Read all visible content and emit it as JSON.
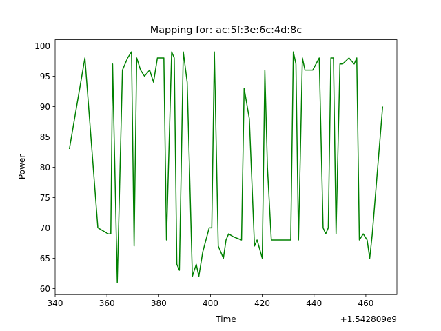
{
  "chart_data": {
    "type": "line",
    "title": "Mapping for: ac:5f:3e:6c:4d:8c",
    "xlabel": "Time",
    "ylabel": "Power",
    "x_offset_label": "+1.542809e9",
    "xlim": [
      340,
      472
    ],
    "ylim": [
      59,
      101
    ],
    "xticks": [
      340,
      360,
      380,
      400,
      420,
      440,
      460
    ],
    "yticks": [
      60,
      65,
      70,
      75,
      80,
      85,
      90,
      95,
      100
    ],
    "grid": false,
    "series": [
      {
        "color": "#008000",
        "x": [
          345.5,
          351.5,
          356.5,
          360.5,
          361.5,
          362.2,
          364.0,
          366.0,
          368.0,
          369.5,
          370.5,
          371.5,
          373.0,
          374.5,
          376.5,
          378.0,
          379.5,
          381.0,
          382.0,
          383.0,
          385.0,
          386.0,
          387.0,
          388.0,
          389.5,
          391.0,
          393.0,
          394.5,
          395.5,
          397.0,
          399.5,
          400.5,
          401.5,
          403.0,
          405.0,
          406.0,
          407.0,
          409.0,
          412.0,
          413.0,
          415.0,
          417.0,
          418.0,
          419.0,
          420.0,
          421.0,
          422.0,
          423.5,
          427.0,
          431.0,
          432.0,
          433.0,
          434.0,
          435.5,
          436.5,
          437.5,
          439.5,
          442.0,
          443.5,
          444.5,
          445.5,
          446.5,
          447.5,
          448.5,
          450.0,
          451.0,
          453.5,
          455.5,
          456.5,
          457.5,
          459.0,
          460.5,
          461.5,
          462.5,
          466.5
        ],
        "y": [
          83,
          98,
          70,
          69,
          69,
          97,
          61,
          96,
          98,
          99,
          67,
          98,
          96,
          95,
          96,
          94,
          98,
          98,
          98,
          68,
          99,
          98,
          64,
          63,
          99,
          94,
          62,
          64,
          62,
          66,
          70,
          70,
          99,
          67,
          65,
          68,
          69,
          68.5,
          68,
          93,
          88,
          67,
          68,
          66.5,
          65,
          96,
          80,
          68,
          68,
          68,
          99,
          97,
          68,
          98,
          96,
          96,
          96,
          98,
          70,
          69,
          70,
          98,
          98,
          69,
          97,
          97,
          98,
          97,
          98,
          68,
          69,
          68,
          65,
          69,
          90
        ]
      }
    ]
  }
}
